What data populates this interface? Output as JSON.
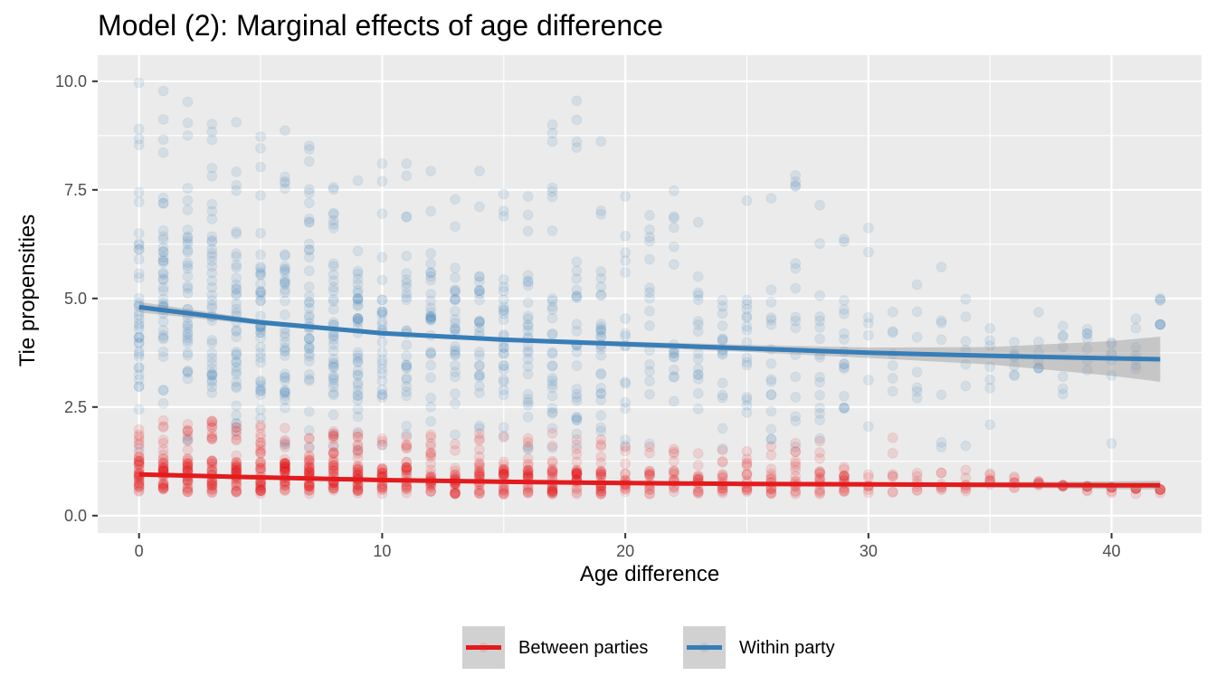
{
  "chart_data": {
    "type": "scatter",
    "title": "Model (2): Marginal effects of age difference",
    "xlabel": "Age difference",
    "ylabel": "Tie propensities",
    "xlim": [
      -1.7,
      43.7
    ],
    "ylim": [
      -0.4,
      10.6
    ],
    "x_ticks": [
      0,
      10,
      20,
      30,
      40
    ],
    "y_ticks": [
      0.0,
      2.5,
      5.0,
      7.5,
      10.0
    ],
    "x_tick_labels": [
      "0",
      "10",
      "20",
      "30",
      "40"
    ],
    "y_tick_labels": [
      "0.0",
      "2.5",
      "5.0",
      "7.5",
      "10.0"
    ],
    "grid": true,
    "background": "#ebebeb",
    "legend_position": "bottom",
    "point_alpha": 0.12,
    "series": [
      {
        "name": "Between parties",
        "color": "#e41a1c",
        "point_y_range_by_x": [
          [
            0,
            0.5,
            2.3
          ],
          [
            5,
            0.5,
            2.1
          ],
          [
            10,
            0.5,
            1.9
          ],
          [
            15,
            0.5,
            1.9
          ],
          [
            18,
            0.5,
            1.9
          ],
          [
            20,
            0.5,
            1.7
          ],
          [
            25,
            0.5,
            1.5
          ],
          [
            28,
            0.5,
            1.8
          ],
          [
            30,
            0.5,
            1.1
          ],
          [
            31,
            0.5,
            1.8
          ],
          [
            33,
            0.5,
            1.1
          ],
          [
            35,
            0.5,
            1.3
          ],
          [
            38,
            0.5,
            0.7
          ],
          [
            42,
            0.5,
            0.6
          ]
        ],
        "fit": {
          "x": [
            0,
            5,
            10,
            15,
            20,
            25,
            30,
            35,
            40,
            42
          ],
          "y": [
            0.95,
            0.88,
            0.82,
            0.78,
            0.75,
            0.73,
            0.72,
            0.71,
            0.7,
            0.7
          ],
          "ci_half_width": [
            0.04,
            0.03,
            0.02,
            0.02,
            0.02,
            0.03,
            0.04,
            0.06,
            0.09,
            0.1
          ]
        }
      },
      {
        "name": "Within party",
        "color": "#377eb8",
        "point_y_range_by_x": [
          [
            0,
            1.5,
            10.0
          ],
          [
            5,
            1.5,
            9.0
          ],
          [
            10,
            1.5,
            8.4
          ],
          [
            15,
            1.5,
            8.3
          ],
          [
            18,
            1.5,
            9.7
          ],
          [
            20,
            1.5,
            8.1
          ],
          [
            25,
            1.5,
            8.1
          ],
          [
            27,
            1.5,
            7.9
          ],
          [
            30,
            1.5,
            7.0
          ],
          [
            33,
            1.5,
            6.0
          ],
          [
            35,
            1.5,
            5.1
          ],
          [
            38,
            2.3,
            4.7
          ],
          [
            40,
            1.5,
            4.7
          ],
          [
            42,
            4.4,
            5.1
          ]
        ],
        "fit": {
          "x": [
            0,
            5,
            10,
            15,
            20,
            25,
            30,
            35,
            40,
            42
          ],
          "y": [
            4.8,
            4.45,
            4.2,
            4.05,
            3.95,
            3.85,
            3.75,
            3.68,
            3.62,
            3.6
          ],
          "ci_half_width": [
            0.12,
            0.06,
            0.05,
            0.05,
            0.06,
            0.08,
            0.12,
            0.2,
            0.4,
            0.52
          ]
        }
      }
    ],
    "ci_color": "#999999"
  }
}
